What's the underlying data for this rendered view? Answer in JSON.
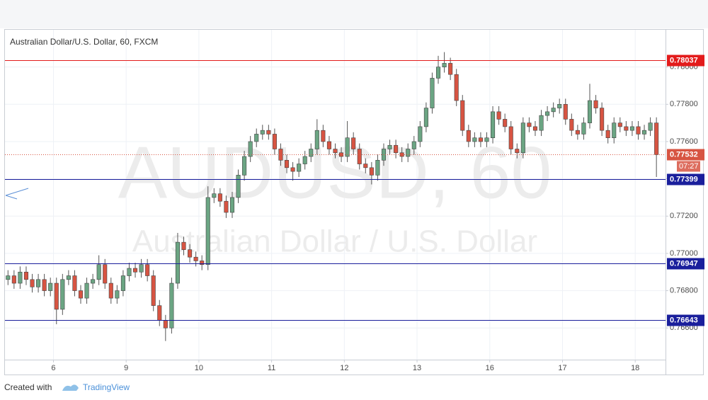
{
  "chart_data": {
    "type": "candlestick",
    "title": "Australian Dollar/U.S. Dollar, 60, FXCM",
    "watermark": {
      "symbol": "AUDUSD, 60",
      "description": "Australian Dollar / U.S. Dollar"
    },
    "up_color": "#6ba583",
    "down_color": "#d75442",
    "open": [
      0.7686,
      0.7688,
      0.7684,
      0.769,
      0.7686,
      0.7682,
      0.7686,
      0.768,
      0.7684,
      0.767,
      0.7686,
      0.7688,
      0.768,
      0.7676,
      0.7684,
      0.7686,
      0.7694,
      0.7684,
      0.7676,
      0.768,
      0.7688,
      0.7692,
      0.769,
      0.7694,
      0.7688,
      0.7672,
      0.7664,
      0.766,
      0.7684,
      0.7706,
      0.7702,
      0.7698,
      0.7696,
      0.7694,
      0.773,
      0.7732,
      0.7728,
      0.7722,
      0.773,
      0.7742,
      0.7752,
      0.776,
      0.7764,
      0.7766,
      0.7764,
      0.7756,
      0.775,
      0.7746,
      0.7744,
      0.7748,
      0.7752,
      0.7756,
      0.7766,
      0.776,
      0.7756,
      0.7754,
      0.7752,
      0.7762,
      0.7756,
      0.7748,
      0.7746,
      0.7742,
      0.775,
      0.7756,
      0.7758,
      0.7754,
      0.7752,
      0.7756,
      0.776,
      0.7768,
      0.7778,
      0.7794,
      0.78,
      0.7802,
      0.7796,
      0.7782,
      0.7766,
      0.776,
      0.7762,
      0.776,
      0.7762,
      0.7776,
      0.7772,
      0.7768,
      0.7756,
      0.7754,
      0.777,
      0.7768,
      0.7766,
      0.7774,
      0.7776,
      0.7778,
      0.778,
      0.7772,
      0.7766,
      0.7764,
      0.777,
      0.7782,
      0.7778,
      0.7766,
      0.7762,
      0.777,
      0.7768,
      0.7766,
      0.7768,
      0.7764,
      0.7766,
      0.777
    ],
    "high": [
      0.7691,
      0.7691,
      0.7693,
      0.7693,
      0.7689,
      0.7689,
      0.7689,
      0.7687,
      0.7687,
      0.7689,
      0.7691,
      0.7691,
      0.7683,
      0.7687,
      0.7689,
      0.7699,
      0.7697,
      0.7687,
      0.7683,
      0.7691,
      0.7695,
      0.7695,
      0.7697,
      0.7697,
      0.7691,
      0.7675,
      0.7667,
      0.7687,
      0.7711,
      0.7709,
      0.7705,
      0.7701,
      0.7699,
      0.7736,
      0.7735,
      0.7735,
      0.7731,
      0.7733,
      0.7745,
      0.7755,
      0.7763,
      0.7767,
      0.7769,
      0.7769,
      0.7767,
      0.7759,
      0.7753,
      0.7749,
      0.7751,
      0.7755,
      0.7759,
      0.7772,
      0.7769,
      0.7763,
      0.7759,
      0.7757,
      0.7771,
      0.7765,
      0.7759,
      0.7751,
      0.7749,
      0.7753,
      0.7759,
      0.7761,
      0.7761,
      0.7757,
      0.7759,
      0.7763,
      0.7771,
      0.7781,
      0.7797,
      0.7806,
      0.7808,
      0.7805,
      0.7799,
      0.7785,
      0.7769,
      0.7765,
      0.7765,
      0.7765,
      0.7779,
      0.7779,
      0.7775,
      0.7771,
      0.7759,
      0.7773,
      0.7773,
      0.7771,
      0.7777,
      0.7779,
      0.7781,
      0.7783,
      0.7783,
      0.7775,
      0.7769,
      0.7773,
      0.7791,
      0.7785,
      0.7781,
      0.7769,
      0.7773,
      0.7773,
      0.7771,
      0.7771,
      0.7771,
      0.7769,
      0.7773,
      0.7773
    ],
    "low": [
      0.7683,
      0.7681,
      0.7681,
      0.7683,
      0.7679,
      0.7679,
      0.7677,
      0.7677,
      0.7662,
      0.7667,
      0.7683,
      0.7677,
      0.7673,
      0.7673,
      0.7681,
      0.7683,
      0.7681,
      0.7673,
      0.7673,
      0.7677,
      0.7685,
      0.7687,
      0.7687,
      0.7685,
      0.7669,
      0.7661,
      0.7653,
      0.7657,
      0.7681,
      0.7699,
      0.7695,
      0.7693,
      0.7691,
      0.7691,
      0.7727,
      0.7725,
      0.7719,
      0.7719,
      0.7727,
      0.7739,
      0.7749,
      0.7757,
      0.7761,
      0.7761,
      0.7753,
      0.7747,
      0.7743,
      0.7739,
      0.7741,
      0.7745,
      0.7749,
      0.7753,
      0.7757,
      0.7753,
      0.7751,
      0.7749,
      0.7749,
      0.7753,
      0.7745,
      0.7743,
      0.7737,
      0.7739,
      0.7747,
      0.7753,
      0.7751,
      0.7749,
      0.7749,
      0.7753,
      0.7757,
      0.7765,
      0.7775,
      0.7791,
      0.7797,
      0.7793,
      0.7779,
      0.7763,
      0.7757,
      0.7757,
      0.7757,
      0.7757,
      0.7759,
      0.7769,
      0.7765,
      0.7753,
      0.7751,
      0.7751,
      0.7765,
      0.7763,
      0.7763,
      0.7771,
      0.7773,
      0.7775,
      0.7769,
      0.7763,
      0.7761,
      0.7761,
      0.7767,
      0.7775,
      0.7763,
      0.7759,
      0.7759,
      0.7765,
      0.7763,
      0.7763,
      0.7761,
      0.7761,
      0.7763,
      0.7741
    ],
    "close": [
      0.7688,
      0.7684,
      0.769,
      0.7686,
      0.7682,
      0.7686,
      0.768,
      0.7684,
      0.767,
      0.7686,
      0.7688,
      0.768,
      0.7676,
      0.7684,
      0.7686,
      0.7694,
      0.7684,
      0.7676,
      0.768,
      0.7688,
      0.7692,
      0.769,
      0.7694,
      0.7688,
      0.7672,
      0.7664,
      0.766,
      0.7684,
      0.7706,
      0.7702,
      0.7698,
      0.7696,
      0.7694,
      0.773,
      0.7732,
      0.7728,
      0.7722,
      0.773,
      0.7742,
      0.7752,
      0.776,
      0.7764,
      0.7766,
      0.7764,
      0.7756,
      0.775,
      0.7746,
      0.7744,
      0.7748,
      0.7752,
      0.7756,
      0.7766,
      0.776,
      0.7756,
      0.7754,
      0.7752,
      0.7762,
      0.7756,
      0.7748,
      0.7746,
      0.7742,
      0.775,
      0.7756,
      0.7758,
      0.7754,
      0.7752,
      0.7756,
      0.776,
      0.7768,
      0.7778,
      0.7794,
      0.78,
      0.7802,
      0.7796,
      0.7782,
      0.7766,
      0.776,
      0.7762,
      0.776,
      0.7762,
      0.7776,
      0.7772,
      0.7768,
      0.7756,
      0.7754,
      0.777,
      0.7768,
      0.7766,
      0.7774,
      0.7776,
      0.7778,
      0.778,
      0.7772,
      0.7766,
      0.7764,
      0.777,
      0.7782,
      0.7778,
      0.7766,
      0.7762,
      0.777,
      0.7768,
      0.7766,
      0.7768,
      0.7764,
      0.7766,
      0.777,
      0.7753
    ],
    "levels": [
      {
        "value": 0.78037,
        "color": "#e31b1b"
      },
      {
        "value": 0.77399,
        "color": "#1a1f9c"
      },
      {
        "value": 0.76947,
        "color": "#1a1f9c"
      },
      {
        "value": 0.76643,
        "color": "#1a1f9c"
      }
    ],
    "last_price": {
      "value": 0.77532,
      "countdown": "07:27",
      "color": "#d75442"
    },
    "ylim": [
      0.7643,
      0.782
    ],
    "yticks": [
      {
        "value": 0.766,
        "label": "0.76600"
      },
      {
        "value": 0.768,
        "label": "0.76800"
      },
      {
        "value": 0.77,
        "label": "0.77000"
      },
      {
        "value": 0.772,
        "label": "0.77200"
      },
      {
        "value": 0.774,
        "label": "0.77400"
      },
      {
        "value": 0.776,
        "label": "0.77600"
      },
      {
        "value": 0.778,
        "label": "0.77800"
      },
      {
        "value": 0.78,
        "label": "0.78000"
      }
    ],
    "xlim": [
      -0.5,
      108.5
    ],
    "xticks": [
      {
        "value": 8,
        "label": "6"
      },
      {
        "value": 20,
        "label": "9"
      },
      {
        "value": 32,
        "label": "10"
      },
      {
        "value": 44,
        "label": "11"
      },
      {
        "value": 56,
        "label": "12"
      },
      {
        "value": 68,
        "label": "13"
      },
      {
        "value": 80,
        "label": "16"
      },
      {
        "value": 92,
        "label": "17"
      },
      {
        "value": 104,
        "label": "18"
      }
    ],
    "grid": true
  },
  "footer": {
    "created": "Created with",
    "brand": "TradingView"
  }
}
